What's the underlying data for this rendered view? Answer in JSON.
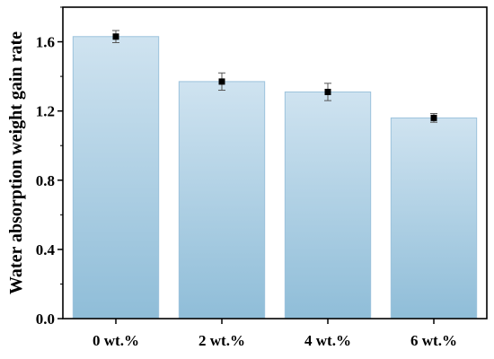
{
  "chart_data": {
    "type": "bar",
    "categories": [
      "0 wt.%",
      "2 wt.%",
      "4 wt.%",
      "6 wt.%"
    ],
    "values": [
      1.63,
      1.37,
      1.31,
      1.16
    ],
    "errors": [
      0.035,
      0.05,
      0.05,
      0.025
    ],
    "ylabel": "Water absorption weight gain rate",
    "xlabel": "",
    "ylim": [
      0,
      1.8
    ],
    "yticks": [
      "0.0",
      "0.4",
      "0.8",
      "1.2",
      "1.6"
    ],
    "grid": false,
    "colors": {
      "bar_top": "#cfe3f0",
      "bar_bottom": "#8fbdd8",
      "bar_edge": "#9cc3dc",
      "marker": "#000000",
      "error": "#555555"
    }
  }
}
